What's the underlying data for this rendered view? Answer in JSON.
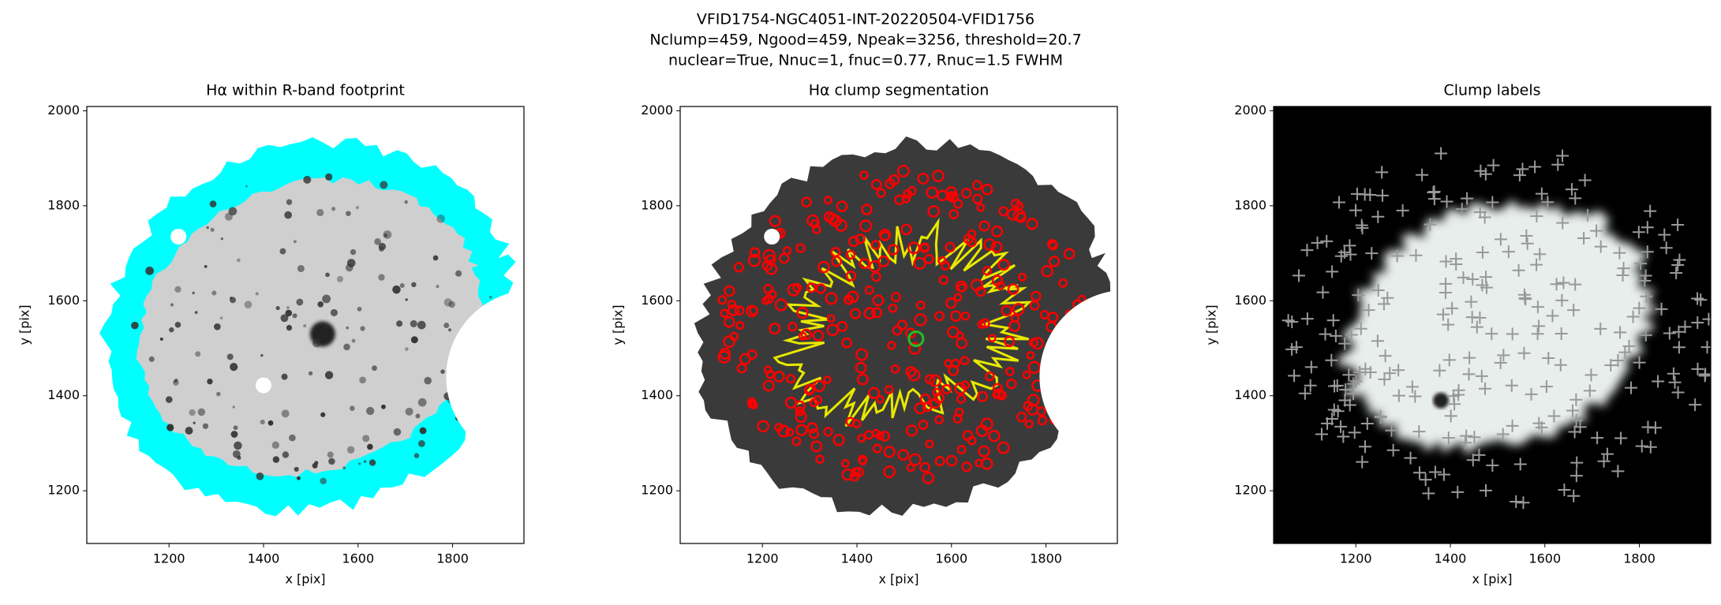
{
  "title": [
    "VFID1754-NGC4051-INT-20220504-VFID1756",
    "Nclump=459, Ngood=459, Npeak=3256, threshold=20.7",
    "nuclear=True, Nnuc=1, fnuc=0.77, Rnuc=1.5 FWHM"
  ],
  "chart_data": [
    {
      "type": "image",
      "title": "Hα within R-band footprint",
      "xlabel": "x [pix]",
      "ylabel": "y [pix]",
      "xlim": [
        1026,
        1951
      ],
      "ylim": [
        1089,
        2009
      ],
      "xticks": [
        1200,
        1400,
        1600,
        1800
      ],
      "yticks": [
        1200,
        1400,
        1600,
        1800,
        2000
      ]
    },
    {
      "type": "image",
      "title": "Hα clump segmentation",
      "xlabel": "x [pix]",
      "ylabel": "y [pix]",
      "xlim": [
        1026,
        1951
      ],
      "ylim": [
        1089,
        2009
      ],
      "xticks": [
        1200,
        1400,
        1600,
        1800
      ],
      "yticks": [
        1200,
        1400,
        1600,
        1800,
        2000
      ]
    },
    {
      "type": "image",
      "title": "Clump labels",
      "xlabel": "x [pix]",
      "ylabel": "y [pix]",
      "xlim": [
        1026,
        1951
      ],
      "ylim": [
        1089,
        2009
      ],
      "xticks": [
        1200,
        1400,
        1600,
        1800
      ],
      "yticks": [
        1200,
        1400,
        1600,
        1800,
        2000
      ]
    }
  ]
}
